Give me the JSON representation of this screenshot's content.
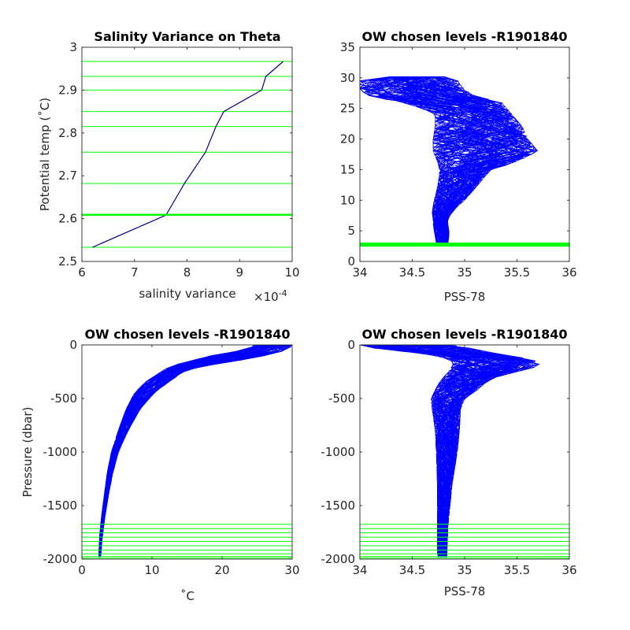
{
  "colors": {
    "profiles": "#0000ff",
    "variance_line": "#00008b",
    "levels": "#00ff00",
    "axis": "#262626"
  },
  "chart_data": [
    {
      "type": "line",
      "title": "Salinity Variance on Theta",
      "xlabel": "salinity variance",
      "x_exponent_label": "×10",
      "x_exponent_power": "-4",
      "ylabel": "Potential temp (˚C)",
      "xlim": [
        6,
        10
      ],
      "ylim": [
        2.5,
        3.0
      ],
      "x_ticks": [
        "6",
        "7",
        "8",
        "9",
        "10"
      ],
      "y_ticks": [
        "2.5",
        "2.6",
        "2.7",
        "2.8",
        "2.9",
        "3"
      ],
      "series": [
        {
          "x": [
            6.2,
            7.6,
            7.95,
            8.35,
            8.55,
            8.7,
            9.42,
            9.5,
            9.83
          ],
          "y": [
            2.533,
            2.608,
            2.682,
            2.755,
            2.815,
            2.85,
            2.9,
            2.932,
            2.967
          ]
        }
      ],
      "levels": [
        2.533,
        2.608,
        2.61,
        2.682,
        2.755,
        2.815,
        2.85,
        2.9,
        2.932,
        2.967
      ]
    },
    {
      "type": "line",
      "title": "OW chosen levels -R1901840",
      "xlabel": "PSS-78",
      "ylabel": "",
      "xlim": [
        34,
        36
      ],
      "ylim": [
        0,
        35
      ],
      "x_ticks": [
        "34",
        "34.5",
        "35",
        "35.5",
        "36"
      ],
      "y_ticks": [
        "0",
        "5",
        "10",
        "15",
        "20",
        "25",
        "30",
        "35"
      ],
      "envelope": {
        "y": [
          2.5,
          3,
          4,
          5,
          6,
          7,
          8,
          9,
          10,
          12,
          14,
          15,
          16,
          18,
          20,
          22,
          24,
          25,
          26,
          27,
          28,
          29,
          29.6,
          30.2
        ],
        "x_left": [
          34.75,
          34.73,
          34.72,
          34.71,
          34.7,
          34.7,
          34.69,
          34.7,
          34.71,
          34.74,
          34.76,
          34.76,
          34.75,
          34.7,
          34.7,
          34.72,
          34.72,
          34.6,
          34.4,
          34.1,
          34.0,
          34.0,
          34.0,
          34.3
        ],
        "x_right": [
          34.83,
          34.84,
          34.85,
          34.85,
          34.84,
          34.84,
          34.88,
          34.93,
          35.0,
          35.1,
          35.2,
          35.25,
          35.45,
          35.7,
          35.6,
          35.55,
          35.45,
          35.4,
          35.35,
          35.1,
          35.0,
          34.95,
          34.93,
          34.8
        ]
      },
      "levels": [
        2.5,
        2.6,
        2.7,
        2.8,
        2.9,
        3.0
      ]
    },
    {
      "type": "line",
      "title": "OW chosen levels -R1901840",
      "xlabel": "˚C",
      "ylabel": "Pressure (dbar)",
      "xlim": [
        0,
        30
      ],
      "ylim": [
        -2000,
        0
      ],
      "x_ticks": [
        "0",
        "10",
        "20",
        "30"
      ],
      "y_ticks": [
        "-2000",
        "-1500",
        "-1000",
        "-500",
        "0"
      ],
      "envelope": {
        "y": [
          -1980,
          -1800,
          -1600,
          -1400,
          -1200,
          -1000,
          -800,
          -600,
          -450,
          -350,
          -250,
          -200,
          -150,
          -100,
          -60,
          -30,
          -10,
          0
        ],
        "x_left": [
          2.4,
          2.5,
          2.8,
          3.2,
          3.6,
          4.2,
          5.2,
          6.3,
          7.5,
          9.0,
          11.3,
          12.5,
          15.5,
          18.5,
          22.0,
          24.0,
          24.5,
          24.5
        ],
        "x_right": [
          2.7,
          2.9,
          3.3,
          3.8,
          4.4,
          5.2,
          6.6,
          8.3,
          10.3,
          12.3,
          14.5,
          17.0,
          22.0,
          26.0,
          28.5,
          29.6,
          29.9,
          30.0
        ]
      },
      "levels": [
        -1675,
        -1715,
        -1755,
        -1795,
        -1835,
        -1875,
        -1915,
        -1950,
        -1975,
        -1990
      ]
    },
    {
      "type": "line",
      "title": "OW chosen levels -R1901840",
      "xlabel": "PSS-78",
      "ylabel": "",
      "xlim": [
        34,
        36
      ],
      "ylim": [
        -2000,
        0
      ],
      "x_ticks": [
        "34",
        "34.5",
        "35",
        "35.5",
        "36"
      ],
      "y_ticks": [
        "-2000",
        "-1500",
        "-1000",
        "-500",
        "0"
      ],
      "envelope": {
        "y": [
          -1980,
          -1700,
          -1500,
          -1300,
          -1000,
          -800,
          -600,
          -500,
          -420,
          -350,
          -300,
          -250,
          -200,
          -160,
          -120,
          -80,
          -40,
          -10,
          0
        ],
        "x_left": [
          34.74,
          34.74,
          34.74,
          34.74,
          34.73,
          34.72,
          34.69,
          34.68,
          34.72,
          34.76,
          34.8,
          34.85,
          34.88,
          34.9,
          34.8,
          34.6,
          34.2,
          34.02,
          34.0
        ],
        "x_right": [
          34.83,
          34.84,
          34.86,
          34.88,
          34.93,
          34.95,
          34.96,
          35.0,
          35.12,
          35.2,
          35.3,
          35.5,
          35.7,
          35.72,
          35.55,
          35.3,
          35.1,
          34.95,
          34.9
        ]
      },
      "levels": [
        -1675,
        -1715,
        -1755,
        -1795,
        -1835,
        -1875,
        -1915,
        -1950,
        -1975,
        -1990
      ]
    }
  ]
}
